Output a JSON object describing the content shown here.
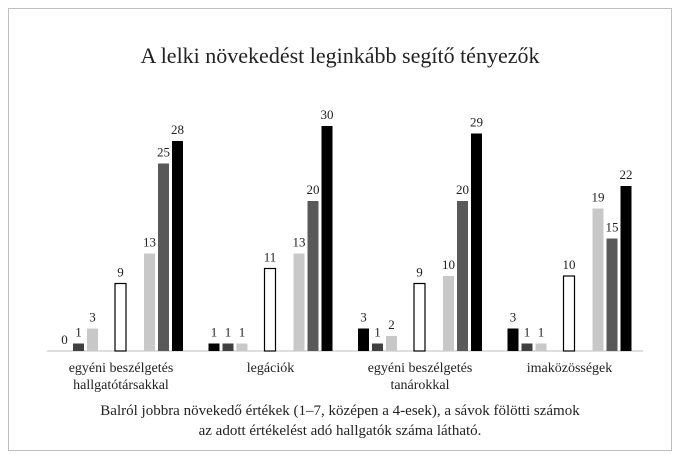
{
  "chart_data": {
    "type": "bar",
    "title": "A lelki növekedést leginkább segítő tényezők",
    "caption": "Balról jobbra növekedő értékek (1–7, középen a 4-esek), a sávok fölötti számok az adott értékelést adó hallgatók száma látható.",
    "categories": [
      "egyéni beszélgetés\nhallgatótársakkal",
      "legációk",
      "egyéni beszélgetés\ntanárokkal",
      "imaközösségek"
    ],
    "ylim": [
      0,
      30
    ],
    "series": [
      {
        "color": "#000000",
        "values": [
          0,
          1,
          3,
          3
        ]
      },
      {
        "color": "#404040",
        "values": [
          1,
          1,
          1,
          1
        ]
      },
      {
        "color": "#c8c8c8",
        "values": [
          3,
          1,
          2,
          1
        ]
      },
      {
        "color": "#ffffff",
        "values": [
          9,
          11,
          9,
          10
        ]
      },
      {
        "color": "#c8c8c8",
        "values": [
          13,
          13,
          10,
          19
        ]
      },
      {
        "color": "#595959",
        "values": [
          25,
          20,
          20,
          15
        ]
      },
      {
        "color": "#000000",
        "values": [
          28,
          30,
          29,
          22
        ]
      }
    ]
  }
}
